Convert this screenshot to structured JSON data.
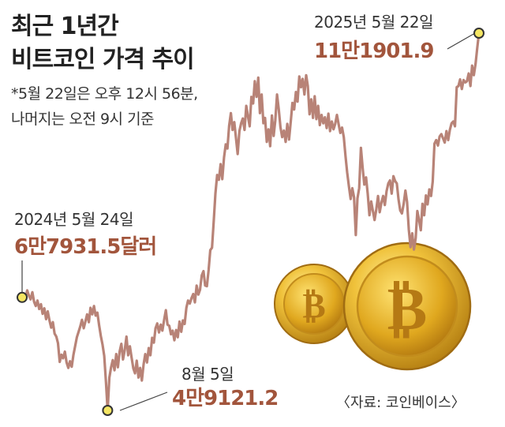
{
  "title_line1": "최근 1년간",
  "title_line2": "비트코인 가격 추이",
  "note_line1": "*5월 22일은 오후 12시 56분,",
  "note_line2": "나머지는 오전 9시 기준",
  "source": "〈자료: 코인베이스〉",
  "colors": {
    "line": "#b88377",
    "price": "#a2553c",
    "text": "#222222"
  },
  "annotations": {
    "start": {
      "date": "2024년 5월 24일",
      "price": "6만7931.5달러"
    },
    "low": {
      "date": "8월 5일",
      "price": "4만9121.2"
    },
    "end": {
      "date": "2025년 5월 22일",
      "price": "11만1901.9"
    }
  },
  "chart_data": {
    "type": "line",
    "title": "최근 1년간 비트코인 가격 추이",
    "x_start": "2024-05-24",
    "x_end": "2025-05-22",
    "x_index": "days",
    "series": [
      {
        "values": [
          67931.5,
          68600,
          67900,
          69100,
          68200,
          67600,
          68800,
          67200,
          66500,
          67400,
          66000,
          66800,
          65200,
          66100,
          64300,
          65600,
          64100,
          62900,
          63800,
          61900,
          61400,
          60300,
          57200,
          58400,
          57800,
          58900,
          57100,
          56200,
          57300,
          56400,
          58400,
          59800,
          61300,
          62200,
          63100,
          64200,
          62800,
          63900,
          65100,
          63800,
          66200,
          65100,
          66500,
          64900,
          65400,
          63300,
          61500,
          60100,
          58200,
          53800,
          49121.2,
          54600,
          56300,
          57500,
          55800,
          58500,
          56300,
          58900,
          60200,
          57600,
          59200,
          61400,
          58300,
          59800,
          57900,
          56100,
          55300,
          57400,
          54600,
          56200,
          54100,
          56800,
          58500,
          57100,
          59500,
          58300,
          61200,
          60400,
          62800,
          63600,
          62100,
          63400,
          62400,
          64200,
          65800,
          63400,
          63200,
          61800,
          62400,
          60800,
          62500,
          61300,
          63900,
          62200,
          64100,
          63500,
          66200,
          67400,
          66900,
          67800,
          68500,
          67100,
          69900,
          68400,
          69200,
          71600,
          72300,
          69900,
          69800,
          72500,
          75800,
          76200,
          80700,
          85200,
          88300,
          87500,
          90100,
          87600,
          91200,
          93400,
          92700,
          96500,
          98600,
          95800,
          97100,
          94400,
          91800,
          95600,
          96900,
          97700,
          95800,
          99800,
          98100,
          96400,
          101300,
          100200,
          103900,
          101300,
          104500,
          98600,
          101700,
          96900,
          97800,
          93800,
          95900,
          93100,
          98200,
          94800,
          97400,
          101700,
          99200,
          96300,
          94600,
          95700,
          93800,
          96800,
          94200,
          97200,
          100300,
          99200,
          102100,
          100500,
          104700,
          102900,
          104300,
          101700,
          104900,
          103100,
          98400,
          100900,
          97800,
          101400,
          97600,
          99800,
          96600,
          98300,
          96900,
          97900,
          96100,
          98500,
          95600,
          97200,
          95900,
          96800,
          98300,
          96700,
          95300,
          96200,
          94600,
          91400,
          88700,
          86400,
          84300,
          86100,
          84600,
          78300,
          84400,
          86100,
          92800,
          89600,
          86700,
          87900,
          85200,
          81600,
          83900,
          82300,
          80800,
          82600,
          84800,
          82100,
          83700,
          84800,
          83300,
          85600,
          86900,
          87400,
          85200,
          88100,
          87300,
          86900,
          84200,
          82400,
          81900,
          83500,
          85700,
          83800,
          79200,
          76300,
          78600,
          75900,
          77800,
          82300,
          80800,
          79100,
          83500,
          81600,
          84900,
          83400,
          85900,
          84800,
          87200,
          93500,
          94100,
          93200,
          94700,
          95100,
          94400,
          93700,
          95600,
          94100,
          95800,
          96900,
          97200,
          96400,
          102900,
          103100,
          104200,
          102600,
          104100,
          103700,
          103900,
          105200,
          103100,
          106500,
          104900,
          106800,
          109400,
          111901.9
        ]
      }
    ],
    "ylim": [
      40000,
      120000
    ],
    "legend": "none",
    "grid": false
  }
}
